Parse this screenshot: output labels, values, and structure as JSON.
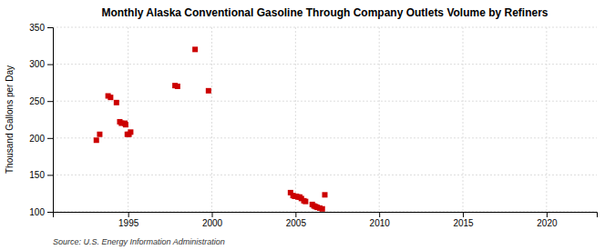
{
  "chart_data": {
    "type": "scatter",
    "title": "Monthly Alaska Conventional Gasoline Through Company Outlets Volume by Refiners",
    "ylabel": "Thousand Gallons per Day",
    "source": "Source: U.S. Energy Information Administration",
    "color": "#cc0000",
    "marker": "square",
    "grid": true,
    "xlim": [
      1990.5,
      2023
    ],
    "ylim": [
      100,
      350
    ],
    "xticks": [
      1995,
      2000,
      2005,
      2010,
      2015,
      2020
    ],
    "yticks": [
      100,
      150,
      200,
      250,
      300,
      350
    ],
    "x": [
      1993.1,
      1993.3,
      1993.8,
      1993.95,
      1994.3,
      1994.5,
      1994.6,
      1994.8,
      1994.85,
      1994.95,
      1995.05,
      1995.15,
      1997.8,
      1997.95,
      1999.0,
      1999.8,
      2004.7,
      2004.85,
      2004.95,
      2005.05,
      2005.15,
      2005.25,
      2005.35,
      2005.5,
      2005.6,
      2006.0,
      2006.1,
      2006.2,
      2006.3,
      2006.45,
      2006.6,
      2006.75
    ],
    "values": [
      197,
      205,
      257,
      255,
      248,
      222,
      220,
      220,
      218,
      205,
      205,
      208,
      271,
      270,
      320,
      264,
      126,
      122,
      121,
      121,
      120,
      120,
      118,
      115,
      114,
      110,
      108,
      107,
      106,
      105,
      104,
      123
    ]
  }
}
